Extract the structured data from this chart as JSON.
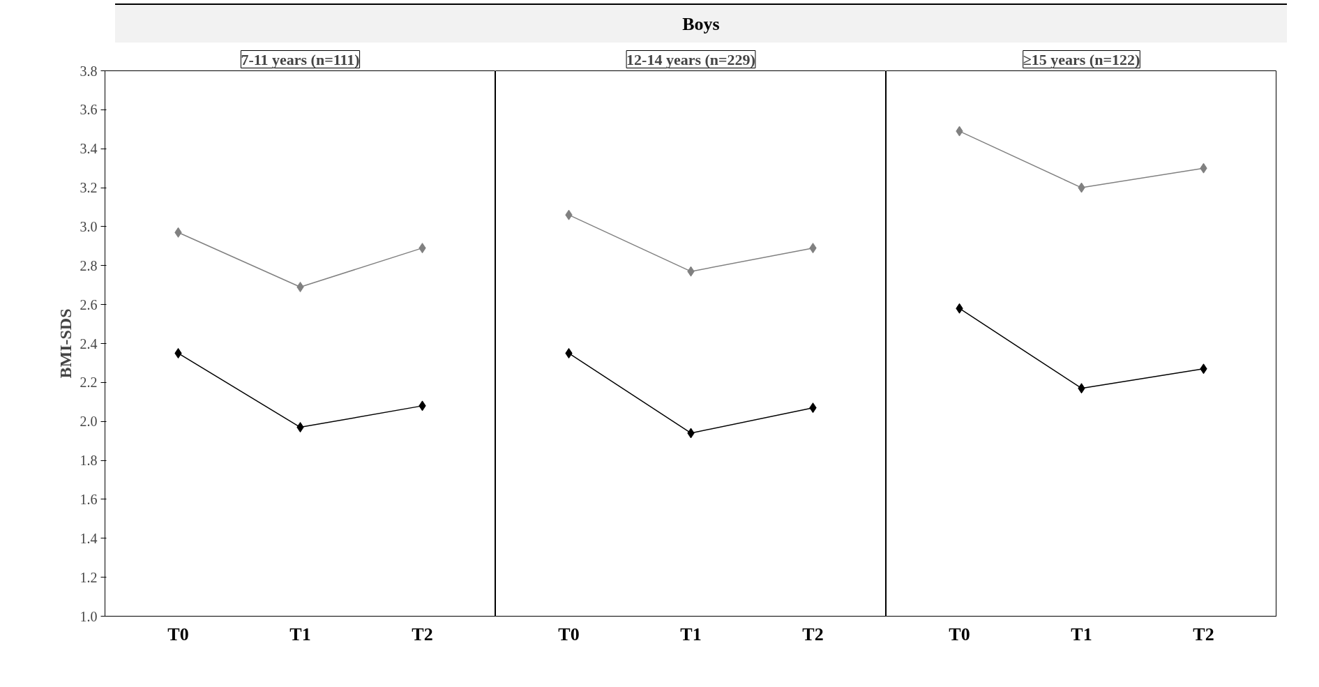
{
  "chart_data": [
    {
      "type": "line",
      "subtitle": "7-11 years (n=111)",
      "ylabel": "BMI-SDS",
      "categories": [
        "T0",
        "T1",
        "T2"
      ],
      "ylim": [
        1.0,
        3.8
      ],
      "yticks": [
        {
          "value": 1.0,
          "label": "1.0"
        },
        1.2,
        1.4,
        1.6,
        1.8,
        {
          "value": 2.0,
          "label": "2.0"
        },
        2.2,
        2.4,
        2.6,
        2.8,
        {
          "value": 3.0,
          "label": "3.0"
        },
        3.2,
        3.4,
        3.6,
        3.8
      ],
      "grid": false,
      "marker": "diamond",
      "line_style": "solid",
      "series": [
        {
          "color": "#808080",
          "values": [
            2.97,
            2.69,
            2.89
          ]
        },
        {
          "color": "#000000",
          "values": [
            2.35,
            1.97,
            2.08
          ]
        }
      ]
    },
    {
      "type": "line",
      "title": "Boys",
      "subtitle": "12-14 years (n=229)",
      "categories": [
        "T0",
        "T1",
        "T2"
      ],
      "ylim": [
        1.0,
        3.8
      ],
      "yticks": [
        1.0,
        1.2,
        1.4,
        1.6,
        1.8,
        2.0,
        2.2,
        2.4,
        2.6,
        2.8,
        3.0,
        3.2,
        3.4,
        3.6,
        3.8
      ],
      "tick_labels": "x",
      "grid": false,
      "marker": "diamond",
      "line_style": "solid",
      "series": [
        {
          "color": "#808080",
          "values": [
            3.06,
            2.77,
            2.89
          ]
        },
        {
          "color": "#000000",
          "values": [
            2.35,
            1.94,
            2.07
          ]
        }
      ]
    },
    {
      "type": "line",
      "subtitle": "≥15 years (n=122)",
      "categories": [
        "T0",
        "T1",
        "T2"
      ],
      "ylim": [
        1.0,
        3.8
      ],
      "yticks": [
        1.0,
        1.2,
        1.4,
        1.6,
        1.8,
        2.0,
        2.2,
        2.4,
        2.6,
        2.8,
        3.0,
        3.2,
        3.4,
        3.6,
        3.8
      ],
      "tick_labels": "x",
      "grid": false,
      "marker": "diamond",
      "line_style": "solid",
      "series": [
        {
          "color": "#808080",
          "values": [
            3.49,
            3.2,
            3.3
          ]
        },
        {
          "color": "#000000",
          "values": [
            2.58,
            2.17,
            2.27
          ]
        }
      ]
    }
  ]
}
